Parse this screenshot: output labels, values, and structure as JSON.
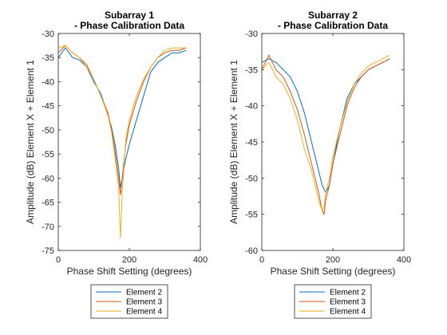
{
  "chart_data": [
    {
      "type": "line",
      "title": [
        "Subarray 1",
        "- Phase Calibration Data"
      ],
      "xlabel": "Phase Shift Setting (degrees)",
      "ylabel": "Amplitude (dB) Element X + Element 1",
      "xlim": [
        0,
        400
      ],
      "ylim": [
        -75,
        -30
      ],
      "xticks": [
        0,
        200,
        400
      ],
      "yticks": [
        -75,
        -70,
        -65,
        -60,
        -55,
        -50,
        -45,
        -40,
        -35,
        -30
      ],
      "grid": false,
      "legend_placement": "below",
      "x": [
        0,
        20,
        40,
        60,
        80,
        100,
        120,
        140,
        150,
        160,
        170,
        175,
        180,
        190,
        200,
        220,
        240,
        260,
        280,
        300,
        320,
        340,
        360
      ],
      "series": [
        {
          "name": "Element 2",
          "color": "#0072BD",
          "values": [
            -35,
            -33,
            -35,
            -35.5,
            -37,
            -40,
            -42.5,
            -47,
            -49.5,
            -53,
            -58,
            -62,
            -60,
            -56,
            -53,
            -48,
            -43,
            -38,
            -36,
            -35,
            -34,
            -34,
            -33.5
          ]
        },
        {
          "name": "Element 3",
          "color": "#D95319",
          "values": [
            -34,
            -32.5,
            -34,
            -35,
            -36.5,
            -39.5,
            -43,
            -46.5,
            -50,
            -54.5,
            -60,
            -63.5,
            -60,
            -53,
            -49,
            -44,
            -40,
            -37,
            -35,
            -34,
            -33.5,
            -33.5,
            -33
          ]
        },
        {
          "name": "Element 4",
          "color": "#EDB120",
          "values": [
            -33,
            -32.5,
            -34,
            -35,
            -37,
            -39.5,
            -43,
            -47,
            -50.5,
            -56,
            -62,
            -72.5,
            -63,
            -52,
            -48,
            -43,
            -39.5,
            -37,
            -35,
            -33.5,
            -33,
            -33,
            -33
          ]
        }
      ]
    },
    {
      "type": "line",
      "title": [
        "Subarray 2",
        "- Phase Calibration Data"
      ],
      "xlabel": "Phase Shift Setting (degrees)",
      "ylabel": "Amplitude (dB) Element X + Element 1",
      "xlim": [
        0,
        400
      ],
      "ylim": [
        -60,
        -30
      ],
      "xticks": [
        0,
        200,
        400
      ],
      "yticks": [
        -60,
        -55,
        -50,
        -45,
        -40,
        -35,
        -30
      ],
      "grid": false,
      "legend_placement": "below",
      "x": [
        0,
        20,
        40,
        60,
        80,
        100,
        120,
        140,
        160,
        170,
        175,
        180,
        190,
        200,
        220,
        240,
        260,
        280,
        300,
        320,
        340,
        360
      ],
      "series": [
        {
          "name": "Element 2",
          "color": "#0072BD",
          "values": [
            -34,
            -33.5,
            -34,
            -35,
            -36,
            -38,
            -41,
            -45,
            -49,
            -51,
            -51.5,
            -52,
            -51,
            -48,
            -43,
            -39,
            -37,
            -36,
            -35,
            -34.5,
            -34,
            -33.5
          ]
        },
        {
          "name": "Element 3",
          "color": "#D95319",
          "values": [
            -35,
            -33,
            -35,
            -36,
            -38,
            -40.5,
            -44,
            -48,
            -52,
            -54.5,
            -55,
            -53,
            -51,
            -48,
            -44,
            -40,
            -37.5,
            -36,
            -35,
            -34.5,
            -34,
            -33.5
          ]
        },
        {
          "name": "Element 4",
          "color": "#EDB120",
          "values": [
            -35,
            -34,
            -36,
            -37,
            -39,
            -42,
            -46,
            -49,
            -53,
            -54.5,
            -54,
            -52,
            -50,
            -47,
            -43,
            -39.5,
            -37,
            -35.5,
            -34.5,
            -34,
            -33.5,
            -33
          ]
        }
      ]
    }
  ]
}
